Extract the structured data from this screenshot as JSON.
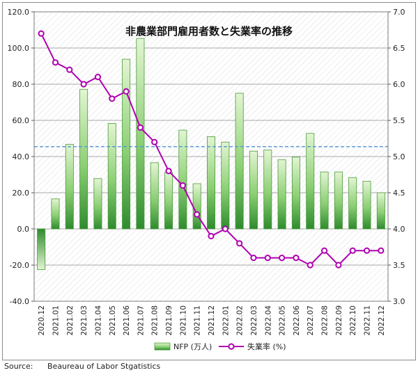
{
  "chart_data": {
    "type": "bar+line",
    "title": "非農業部門雇用者数と失業率の推移",
    "categories": [
      "2020.12",
      "2021.01",
      "2021.02",
      "2021.03",
      "2021.04",
      "2021.05",
      "2021.06",
      "2021.07",
      "2021.08",
      "2021.09",
      "2021.10",
      "2021.11",
      "2021.12",
      "2022.01",
      "2022.02",
      "2022.03",
      "2022.04",
      "2022.05",
      "2022.06",
      "2022.07",
      "2022.08",
      "2022.09",
      "2022.10",
      "2022.11",
      "2022.12"
    ],
    "series": [
      {
        "name": "NFP (万人)",
        "type": "bar",
        "axis": "left",
        "values": [
          -22.5,
          16.6,
          46.8,
          77.2,
          27.8,
          58.3,
          93.8,
          105.3,
          36.6,
          31.2,
          54.6,
          25.0,
          51.0,
          48.0,
          75.0,
          43.0,
          43.6,
          38.2,
          39.7,
          52.8,
          31.5,
          31.5,
          28.4,
          26.3,
          20.0
        ]
      },
      {
        "name": "失業率 (%)",
        "type": "line",
        "axis": "right",
        "values": [
          6.7,
          6.3,
          6.2,
          6.0,
          6.1,
          5.8,
          5.9,
          5.4,
          5.2,
          4.8,
          4.6,
          4.2,
          3.9,
          4.0,
          3.8,
          3.6,
          3.6,
          3.6,
          3.6,
          3.5,
          3.7,
          3.5,
          3.7,
          3.7,
          3.7
        ]
      }
    ],
    "reference_line": {
      "axis": "left",
      "value": 45.5,
      "style": "dashed",
      "color": "#5b9bd5"
    },
    "y_left": {
      "min": -40,
      "max": 120,
      "step": 20,
      "ticks": [
        "-40.0",
        "-20.0",
        "0.0",
        "20.0",
        "40.0",
        "60.0",
        "80.0",
        "100.0",
        "120.0"
      ]
    },
    "y_right": {
      "min": 3.0,
      "max": 7.0,
      "step": 0.5,
      "ticks": [
        "3.0",
        "3.5",
        "4.0",
        "4.5",
        "5.0",
        "5.5",
        "6.0",
        "6.5",
        "7.0"
      ]
    },
    "grid": true,
    "legend_position": "bottom",
    "colors": {
      "bar_dark": "#2e8b2e",
      "bar_light": "#d6f0c2",
      "bar_border": "#4a9a3a",
      "line": "#b000b0",
      "marker_fill": "#ffffff",
      "ref": "#5b9bd5"
    }
  },
  "source": {
    "label": "Source:",
    "text": "Beaureau of Labor Stgatistics"
  }
}
